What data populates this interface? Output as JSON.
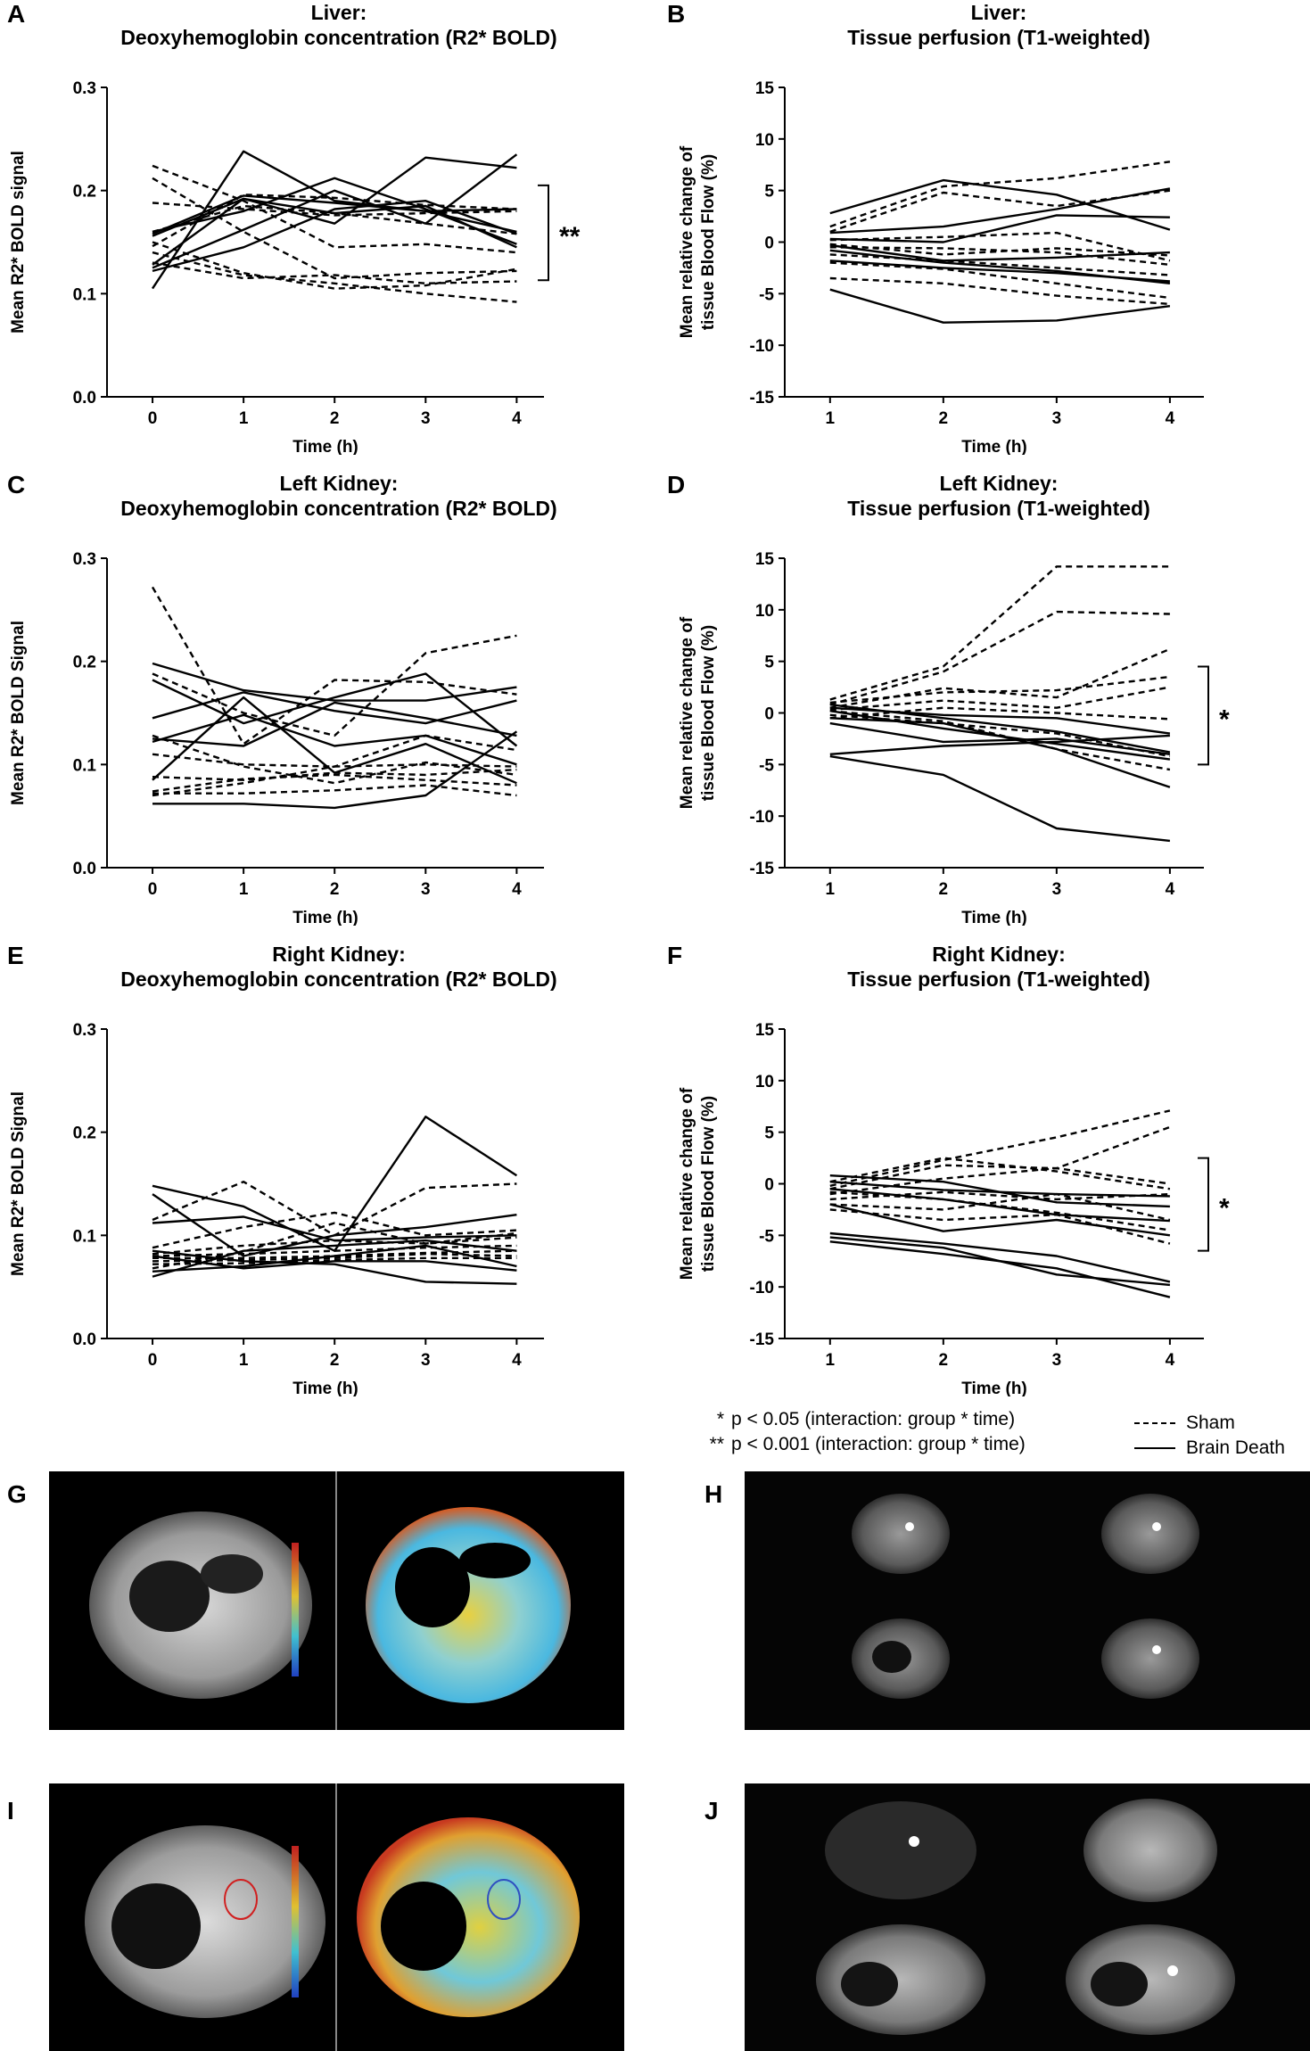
{
  "figure": {
    "footnotes": [
      {
        "mark": "*",
        "text": "p < 0.05 (interaction: group * time)"
      },
      {
        "mark": "**",
        "text": "p < 0.001 (interaction: group * time)"
      }
    ],
    "legend": {
      "sham": "Sham",
      "brain_death": "Brain Death"
    },
    "image_labels": [
      "G",
      "H",
      "I",
      "J"
    ],
    "colors": {
      "line": "#000000",
      "image_bg": "#000000"
    }
  },
  "chart_data": [
    {
      "id": "A",
      "type": "line",
      "label": "A",
      "title": "Liver:",
      "subtitle": "Deoxyhemoglobin concentration (R2* BOLD)",
      "xlabel": "Time (h)",
      "ylabel": "Mean R2* BOLD signal",
      "x": [
        0,
        1,
        2,
        3,
        4
      ],
      "xlim": [
        -0.5,
        4.3
      ],
      "ylim": [
        0,
        0.3
      ],
      "xticks": [
        0,
        1,
        2,
        3,
        4
      ],
      "yticks": [
        0.0,
        0.1,
        0.2,
        0.3
      ],
      "ytick_labels": [
        "0.0",
        "0.1",
        "0.2",
        "0.3"
      ],
      "significance": "**",
      "series": [
        {
          "group": "Sham",
          "values": [
            0.224,
            0.19,
            0.145,
            0.148,
            0.14
          ]
        },
        {
          "group": "Sham",
          "values": [
            0.212,
            0.16,
            0.115,
            0.12,
            0.122
          ]
        },
        {
          "group": "Sham",
          "values": [
            0.15,
            0.12,
            0.105,
            0.108,
            0.124
          ]
        },
        {
          "group": "Sham",
          "values": [
            0.14,
            0.118,
            0.11,
            0.1,
            0.092
          ]
        },
        {
          "group": "Sham",
          "values": [
            0.13,
            0.115,
            0.118,
            0.11,
            0.112
          ]
        },
        {
          "group": "Sham",
          "values": [
            0.16,
            0.185,
            0.178,
            0.168,
            0.158
          ]
        },
        {
          "group": "Sham",
          "values": [
            0.188,
            0.182,
            0.176,
            0.178,
            0.18
          ]
        },
        {
          "group": "Sham",
          "values": [
            0.146,
            0.196,
            0.193,
            0.186,
            0.182
          ]
        },
        {
          "group": "Brain Death",
          "values": [
            0.105,
            0.238,
            0.19,
            0.18,
            0.16
          ]
        },
        {
          "group": "Brain Death",
          "values": [
            0.16,
            0.18,
            0.212,
            0.182,
            0.148
          ]
        },
        {
          "group": "Brain Death",
          "values": [
            0.125,
            0.162,
            0.2,
            0.168,
            0.235
          ]
        },
        {
          "group": "Brain Death",
          "values": [
            0.128,
            0.192,
            0.168,
            0.232,
            0.222
          ]
        },
        {
          "group": "Brain Death",
          "values": [
            0.158,
            0.195,
            0.188,
            0.18,
            0.182
          ]
        },
        {
          "group": "Brain Death",
          "values": [
            0.156,
            0.192,
            0.178,
            0.185,
            0.145
          ]
        },
        {
          "group": "Brain Death",
          "values": [
            0.122,
            0.145,
            0.182,
            0.19,
            0.158
          ]
        }
      ]
    },
    {
      "id": "B",
      "type": "line",
      "label": "B",
      "title": "Liver:",
      "subtitle": "Tissue perfusion (T1-weighted)",
      "xlabel": "Time (h)",
      "ylabel": "Mean relative change of tissue Blood Flow (%)",
      "x": [
        1,
        2,
        3,
        4
      ],
      "xlim": [
        0.6,
        4.3
      ],
      "ylim": [
        -15,
        15
      ],
      "xticks": [
        1,
        2,
        3,
        4
      ],
      "yticks": [
        -15,
        -10,
        -5,
        0,
        5,
        10,
        15
      ],
      "ytick_labels": [
        "-15",
        "-10",
        "-5",
        "0",
        "5",
        "10",
        "15"
      ],
      "significance": "",
      "series": [
        {
          "group": "Sham",
          "values": [
            1.5,
            5.4,
            6.2,
            7.8
          ]
        },
        {
          "group": "Sham",
          "values": [
            1.0,
            4.8,
            3.5,
            5.0
          ]
        },
        {
          "group": "Sham",
          "values": [
            0.2,
            0.5,
            0.9,
            -1.8
          ]
        },
        {
          "group": "Sham",
          "values": [
            -0.5,
            -0.6,
            -1.0,
            -2.2
          ]
        },
        {
          "group": "Sham",
          "values": [
            -1.2,
            -1.8,
            -2.5,
            -3.2
          ]
        },
        {
          "group": "Sham",
          "values": [
            -2.0,
            -2.6,
            -4.0,
            -5.4
          ]
        },
        {
          "group": "Sham",
          "values": [
            -3.5,
            -4.0,
            -5.2,
            -6.0
          ]
        },
        {
          "group": "Sham",
          "values": [
            -0.2,
            -1.2,
            -0.6,
            -1.3
          ]
        },
        {
          "group": "Brain Death",
          "values": [
            2.8,
            6.0,
            4.6,
            1.2
          ]
        },
        {
          "group": "Brain Death",
          "values": [
            0.9,
            1.5,
            3.2,
            5.2
          ]
        },
        {
          "group": "Brain Death",
          "values": [
            0.3,
            0.0,
            2.6,
            2.4
          ]
        },
        {
          "group": "Brain Death",
          "values": [
            -0.3,
            -1.8,
            -1.5,
            -1.0
          ]
        },
        {
          "group": "Brain Death",
          "values": [
            -0.8,
            -2.0,
            -2.8,
            -4.0
          ]
        },
        {
          "group": "Brain Death",
          "values": [
            -1.8,
            -2.5,
            -3.0,
            -3.8
          ]
        },
        {
          "group": "Brain Death",
          "values": [
            -4.6,
            -7.8,
            -7.6,
            -6.2
          ]
        }
      ]
    },
    {
      "id": "C",
      "type": "line",
      "label": "C",
      "title": "Left Kidney:",
      "subtitle": "Deoxyhemoglobin concentration (R2* BOLD)",
      "xlabel": "Time (h)",
      "ylabel": "Mean R2* BOLD Signal",
      "x": [
        0,
        1,
        2,
        3,
        4
      ],
      "xlim": [
        -0.5,
        4.3
      ],
      "ylim": [
        0,
        0.3
      ],
      "xticks": [
        0,
        1,
        2,
        3,
        4
      ],
      "yticks": [
        0.0,
        0.1,
        0.2,
        0.3
      ],
      "ytick_labels": [
        "0.0",
        "0.1",
        "0.2",
        "0.3"
      ],
      "significance": "",
      "series": [
        {
          "group": "Sham",
          "values": [
            0.272,
            0.12,
            0.182,
            0.18,
            0.168
          ]
        },
        {
          "group": "Sham",
          "values": [
            0.188,
            0.15,
            0.128,
            0.208,
            0.225
          ]
        },
        {
          "group": "Sham",
          "values": [
            0.128,
            0.098,
            0.082,
            0.102,
            0.09
          ]
        },
        {
          "group": "Sham",
          "values": [
            0.11,
            0.1,
            0.098,
            0.1,
            0.098
          ]
        },
        {
          "group": "Sham",
          "values": [
            0.088,
            0.085,
            0.092,
            0.09,
            0.095
          ]
        },
        {
          "group": "Sham",
          "values": [
            0.074,
            0.086,
            0.09,
            0.085,
            0.08
          ]
        },
        {
          "group": "Sham",
          "values": [
            0.072,
            0.072,
            0.075,
            0.08,
            0.07
          ]
        },
        {
          "group": "Sham",
          "values": [
            0.07,
            0.082,
            0.098,
            0.128,
            0.114
          ]
        },
        {
          "group": "Brain Death",
          "values": [
            0.198,
            0.172,
            0.162,
            0.162,
            0.175
          ]
        },
        {
          "group": "Brain Death",
          "values": [
            0.182,
            0.14,
            0.165,
            0.188,
            0.118
          ]
        },
        {
          "group": "Brain Death",
          "values": [
            0.145,
            0.17,
            0.152,
            0.14,
            0.162
          ]
        },
        {
          "group": "Brain Death",
          "values": [
            0.125,
            0.118,
            0.16,
            0.145,
            0.128
          ]
        },
        {
          "group": "Brain Death",
          "values": [
            0.122,
            0.148,
            0.118,
            0.128,
            0.1
          ]
        },
        {
          "group": "Brain Death",
          "values": [
            0.085,
            0.165,
            0.092,
            0.12,
            0.082
          ]
        },
        {
          "group": "Brain Death",
          "values": [
            0.062,
            0.062,
            0.058,
            0.07,
            0.132
          ]
        }
      ]
    },
    {
      "id": "D",
      "type": "line",
      "label": "D",
      "title": "Left Kidney:",
      "subtitle": "Tissue perfusion (T1-weighted)",
      "xlabel": "Time (h)",
      "ylabel": "Mean relative change of tissue Blood Flow (%)",
      "x": [
        1,
        2,
        3,
        4
      ],
      "xlim": [
        0.6,
        4.3
      ],
      "ylim": [
        -15,
        15
      ],
      "xticks": [
        1,
        2,
        3,
        4
      ],
      "yticks": [
        -15,
        -10,
        -5,
        0,
        5,
        10,
        15
      ],
      "ytick_labels": [
        "-15",
        "-10",
        "-5",
        "0",
        "5",
        "10",
        "15"
      ],
      "significance": "*",
      "series": [
        {
          "group": "Sham",
          "values": [
            1.3,
            4.5,
            14.2,
            14.2
          ]
        },
        {
          "group": "Sham",
          "values": [
            0.8,
            4.0,
            9.8,
            9.6
          ]
        },
        {
          "group": "Sham",
          "values": [
            0.5,
            2.4,
            1.5,
            6.2
          ]
        },
        {
          "group": "Sham",
          "values": [
            1.0,
            2.0,
            2.2,
            3.5
          ]
        },
        {
          "group": "Sham",
          "values": [
            0.3,
            1.2,
            0.5,
            2.5
          ]
        },
        {
          "group": "Sham",
          "values": [
            -0.5,
            0.5,
            0.0,
            -0.6
          ]
        },
        {
          "group": "Sham",
          "values": [
            0.2,
            -0.8,
            -3.5,
            -5.5
          ]
        },
        {
          "group": "Sham",
          "values": [
            -0.2,
            -1.0,
            -2.0,
            -4.2
          ]
        },
        {
          "group": "Brain Death",
          "values": [
            0.8,
            -0.5,
            -1.8,
            -3.8
          ]
        },
        {
          "group": "Brain Death",
          "values": [
            0.5,
            -0.2,
            -0.5,
            -2.0
          ]
        },
        {
          "group": "Brain Death",
          "values": [
            0.2,
            -1.5,
            -3.0,
            -4.5
          ]
        },
        {
          "group": "Brain Death",
          "values": [
            -0.5,
            -1.0,
            -3.5,
            -7.2
          ]
        },
        {
          "group": "Brain Death",
          "values": [
            -1.0,
            -2.8,
            -2.5,
            -4.0
          ]
        },
        {
          "group": "Brain Death",
          "values": [
            -4.2,
            -6.0,
            -11.2,
            -12.4
          ]
        },
        {
          "group": "Brain Death",
          "values": [
            -4.0,
            -3.2,
            -2.8,
            -2.2
          ]
        }
      ]
    },
    {
      "id": "E",
      "type": "line",
      "label": "E",
      "title": "Right Kidney:",
      "subtitle": "Deoxyhemoglobin concentration (R2* BOLD)",
      "xlabel": "Time (h)",
      "ylabel": "Mean R2* BOLD Signal",
      "x": [
        0,
        1,
        2,
        3,
        4
      ],
      "xlim": [
        -0.5,
        4.3
      ],
      "ylim": [
        0,
        0.3
      ],
      "xticks": [
        0,
        1,
        2,
        3,
        4
      ],
      "yticks": [
        0.0,
        0.1,
        0.2,
        0.3
      ],
      "ytick_labels": [
        "0.0",
        "0.1",
        "0.2",
        "0.3"
      ],
      "significance": "",
      "series": [
        {
          "group": "Sham",
          "values": [
            0.115,
            0.152,
            0.1,
            0.146,
            0.15
          ]
        },
        {
          "group": "Sham",
          "values": [
            0.088,
            0.108,
            0.122,
            0.1,
            0.105
          ]
        },
        {
          "group": "Sham",
          "values": [
            0.082,
            0.09,
            0.095,
            0.092,
            0.098
          ]
        },
        {
          "group": "Sham",
          "values": [
            0.08,
            0.082,
            0.085,
            0.088,
            0.09
          ]
        },
        {
          "group": "Sham",
          "values": [
            0.078,
            0.078,
            0.08,
            0.083,
            0.085
          ]
        },
        {
          "group": "Sham",
          "values": [
            0.075,
            0.076,
            0.078,
            0.082,
            0.08
          ]
        },
        {
          "group": "Sham",
          "values": [
            0.072,
            0.073,
            0.076,
            0.078,
            0.078
          ]
        },
        {
          "group": "Sham",
          "values": [
            0.068,
            0.084,
            0.112,
            0.092,
            0.102
          ]
        },
        {
          "group": "Brain Death",
          "values": [
            0.148,
            0.128,
            0.085,
            0.215,
            0.158
          ]
        },
        {
          "group": "Brain Death",
          "values": [
            0.14,
            0.08,
            0.1,
            0.108,
            0.12
          ]
        },
        {
          "group": "Brain Death",
          "values": [
            0.112,
            0.118,
            0.095,
            0.098,
            0.1
          ]
        },
        {
          "group": "Brain Death",
          "values": [
            0.06,
            0.085,
            0.09,
            0.095,
            0.085
          ]
        },
        {
          "group": "Brain Death",
          "values": [
            0.065,
            0.07,
            0.08,
            0.09,
            0.07
          ]
        },
        {
          "group": "Brain Death",
          "values": [
            0.08,
            0.068,
            0.075,
            0.075,
            0.066
          ]
        },
        {
          "group": "Brain Death",
          "values": [
            0.085,
            0.075,
            0.072,
            0.055,
            0.053
          ]
        }
      ]
    },
    {
      "id": "F",
      "type": "line",
      "label": "F",
      "title": "Right Kidney:",
      "subtitle": "Tissue perfusion (T1-weighted)",
      "xlabel": "Time (h)",
      "ylabel": "Mean relative change of tissue Blood Flow (%)",
      "x": [
        1,
        2,
        3,
        4
      ],
      "xlim": [
        0.6,
        4.3
      ],
      "ylim": [
        -15,
        15
      ],
      "xticks": [
        1,
        2,
        3,
        4
      ],
      "yticks": [
        -15,
        -10,
        -5,
        0,
        5,
        10,
        15
      ],
      "ytick_labels": [
        "-15",
        "-10",
        "-5",
        "0",
        "5",
        "10",
        "15"
      ],
      "significance": "*",
      "series": [
        {
          "group": "Sham",
          "values": [
            -0.2,
            2.3,
            4.5,
            7.1
          ]
        },
        {
          "group": "Sham",
          "values": [
            -0.5,
            1.8,
            1.5,
            5.5
          ]
        },
        {
          "group": "Sham",
          "values": [
            0.2,
            2.5,
            1.2,
            -0.5
          ]
        },
        {
          "group": "Sham",
          "values": [
            -1.0,
            0.5,
            1.5,
            0.0
          ]
        },
        {
          "group": "Sham",
          "values": [
            -1.5,
            -0.8,
            -1.5,
            -1.0
          ]
        },
        {
          "group": "Sham",
          "values": [
            -2.0,
            -2.5,
            -1.0,
            -3.5
          ]
        },
        {
          "group": "Sham",
          "values": [
            -2.5,
            -3.5,
            -3.0,
            -5.8
          ]
        },
        {
          "group": "Sham",
          "values": [
            -0.8,
            -1.5,
            -2.8,
            -4.5
          ]
        },
        {
          "group": "Brain Death",
          "values": [
            0.8,
            0.2,
            -1.8,
            -2.2
          ]
        },
        {
          "group": "Brain Death",
          "values": [
            0.2,
            -0.6,
            -1.0,
            -1.2
          ]
        },
        {
          "group": "Brain Death",
          "values": [
            -0.5,
            -1.5,
            -3.0,
            -3.6
          ]
        },
        {
          "group": "Brain Death",
          "values": [
            -2.0,
            -4.6,
            -3.5,
            -5.0
          ]
        },
        {
          "group": "Brain Death",
          "values": [
            -4.8,
            -5.8,
            -7.0,
            -9.5
          ]
        },
        {
          "group": "Brain Death",
          "values": [
            -5.2,
            -6.2,
            -8.8,
            -9.8
          ]
        },
        {
          "group": "Brain Death",
          "values": [
            -5.6,
            -6.8,
            -8.2,
            -11.0
          ]
        }
      ]
    }
  ]
}
